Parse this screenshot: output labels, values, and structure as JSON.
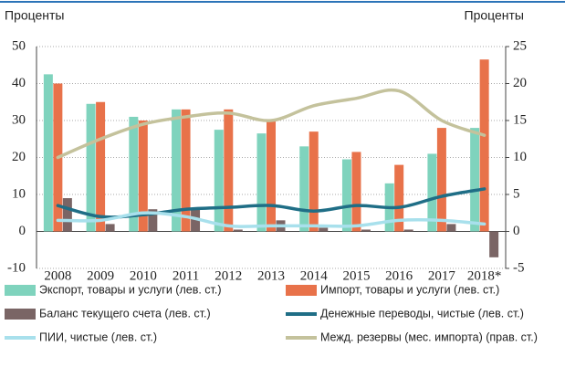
{
  "chart_data": {
    "type": "bar",
    "ylabel": "Проценты",
    "y2label": "Проценты",
    "categories": [
      "2008",
      "2009",
      "2010",
      "2011",
      "2012",
      "2013",
      "2014",
      "2015",
      "2016",
      "2017",
      "2018*"
    ],
    "series": [
      {
        "name": "Экспорт, товары и услуги (лев. ст.)",
        "type": "bar",
        "color": "#7fd3bd",
        "values": [
          42.5,
          34.5,
          31,
          33,
          27.5,
          26.5,
          23,
          19.5,
          13,
          21,
          28
        ]
      },
      {
        "name": "Импорт, товары и услуги (лев. ст.)",
        "type": "bar",
        "color": "#e8724a",
        "values": [
          40,
          35,
          30,
          33,
          33,
          30,
          27,
          21.5,
          18,
          28,
          46.5
        ]
      },
      {
        "name": "Баланс текущего счета (лев. ст.)",
        "type": "bar",
        "color": "#7a6565",
        "values": [
          9,
          2,
          6,
          6,
          0.5,
          3,
          1,
          0.5,
          0.5,
          2,
          -7
        ]
      },
      {
        "name": "Денежные переводы, чистые (лев. ст.)",
        "type": "line",
        "color": "#1f6e86",
        "values": [
          7,
          4,
          4.5,
          6,
          6.5,
          7,
          5.5,
          7,
          6.5,
          9.5,
          11.5
        ]
      },
      {
        "name": "ПИИ, чистые (лев. ст.)",
        "type": "line",
        "color": "#a8e0ec",
        "values": [
          3,
          3,
          5,
          4,
          1.5,
          1.5,
          1.5,
          1.5,
          3,
          3,
          2
        ]
      },
      {
        "name": "Межд. резервы (мес. импорта)  (прав. ст.)",
        "type": "line",
        "axis": "y2",
        "color": "#c4c29c",
        "values": [
          10,
          12.5,
          14.5,
          15.5,
          16,
          15,
          17,
          18,
          19,
          15,
          13
        ]
      }
    ],
    "ylim": [
      -10,
      50
    ],
    "yticks": [
      -10,
      0,
      10,
      20,
      30,
      40,
      50
    ],
    "y2lim": [
      -5,
      25
    ],
    "y2ticks": [
      -5,
      0,
      5,
      10,
      15,
      20,
      25
    ],
    "grid": true
  }
}
